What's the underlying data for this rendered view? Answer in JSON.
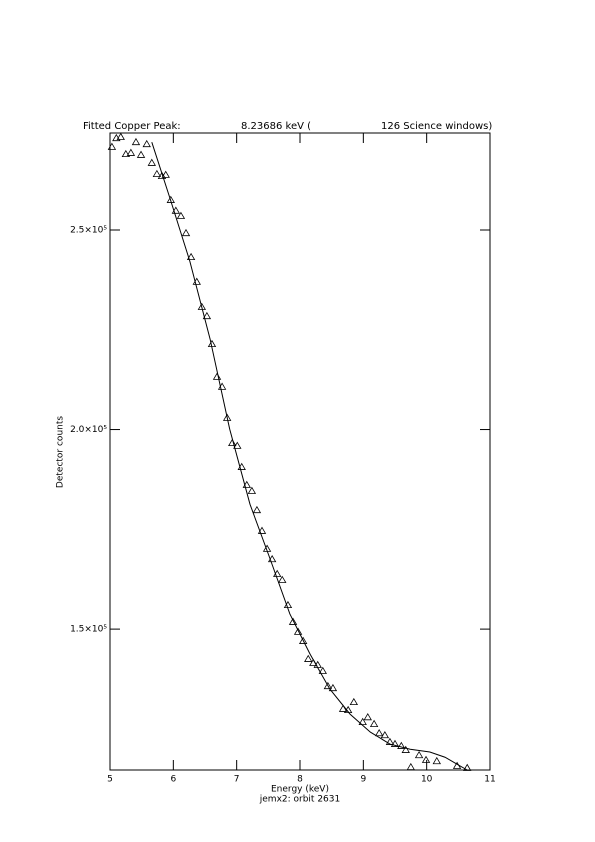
{
  "chart_data": {
    "type": "scatter",
    "title_parts": [
      "Fitted Copper Peak:",
      "8.23686 keV (",
      "126 Science windows)"
    ],
    "xlabel": "Energy (keV)",
    "subtitle": "jemx2: orbit 2631",
    "ylabel": "Detector counts",
    "xlim": [
      5,
      11
    ],
    "xticks": [
      5,
      6,
      7,
      8,
      9,
      10,
      11
    ],
    "ylim": [
      114700,
      274300
    ],
    "yticks": [
      {
        "value": 150000,
        "label": "1.5×10⁵"
      },
      {
        "value": 200000,
        "label": "2.0×10⁵"
      },
      {
        "value": 250000,
        "label": "2.5×10⁵"
      }
    ],
    "series": [
      {
        "type": "scatter",
        "color": "#000000",
        "x": [
          5.03,
          5.1,
          5.17,
          5.25,
          5.33,
          5.41,
          5.49,
          5.58,
          5.66,
          5.74,
          5.82,
          5.88,
          5.96,
          6.04,
          6.12,
          6.2,
          6.28,
          6.37,
          6.45,
          6.53,
          6.61,
          6.69,
          6.77,
          6.85,
          6.93,
          7.01,
          7.08,
          7.16,
          7.24,
          7.32,
          7.4,
          7.48,
          7.56,
          7.64,
          7.72,
          7.81,
          7.89,
          7.97,
          8.05,
          8.13,
          8.21,
          8.28,
          8.36,
          8.44,
          8.52,
          8.68,
          8.76,
          8.85,
          8.99,
          9.07,
          9.17,
          9.25,
          9.34,
          9.42,
          9.5,
          9.6,
          9.67,
          9.75,
          9.88,
          9.99,
          10.16,
          10.48,
          10.64
        ],
        "values": [
          270800,
          273000,
          273300,
          269000,
          269300,
          272000,
          268800,
          271500,
          266800,
          264000,
          263500,
          263800,
          257500,
          254800,
          253500,
          249200,
          243200,
          237000,
          230700,
          228400,
          221400,
          213200,
          210700,
          202900,
          196600,
          195900,
          190600,
          186100,
          184600,
          179800,
          174600,
          170100,
          167500,
          163800,
          162300,
          156000,
          151800,
          149300,
          147000,
          142500,
          141500,
          141000,
          139500,
          135700,
          135200,
          130000,
          129700,
          131700,
          126700,
          127900,
          126200,
          123900,
          123400,
          121700,
          121200,
          120700,
          119700,
          115400,
          118400,
          117200,
          116900,
          115700,
          115200
        ]
      },
      {
        "type": "line",
        "color": "#000000",
        "x": [
          5.66,
          5.95,
          6.26,
          6.58,
          6.89,
          7.21,
          7.53,
          7.84,
          8.16,
          8.47,
          8.79,
          9.11,
          9.42,
          9.74,
          10.05,
          10.29,
          10.53,
          10.64
        ],
        "values": [
          272000,
          257800,
          242200,
          222700,
          200100,
          181300,
          167500,
          153800,
          143700,
          135000,
          128700,
          124200,
          121200,
          119900,
          119200,
          117900,
          115700,
          114700
        ]
      }
    ]
  }
}
